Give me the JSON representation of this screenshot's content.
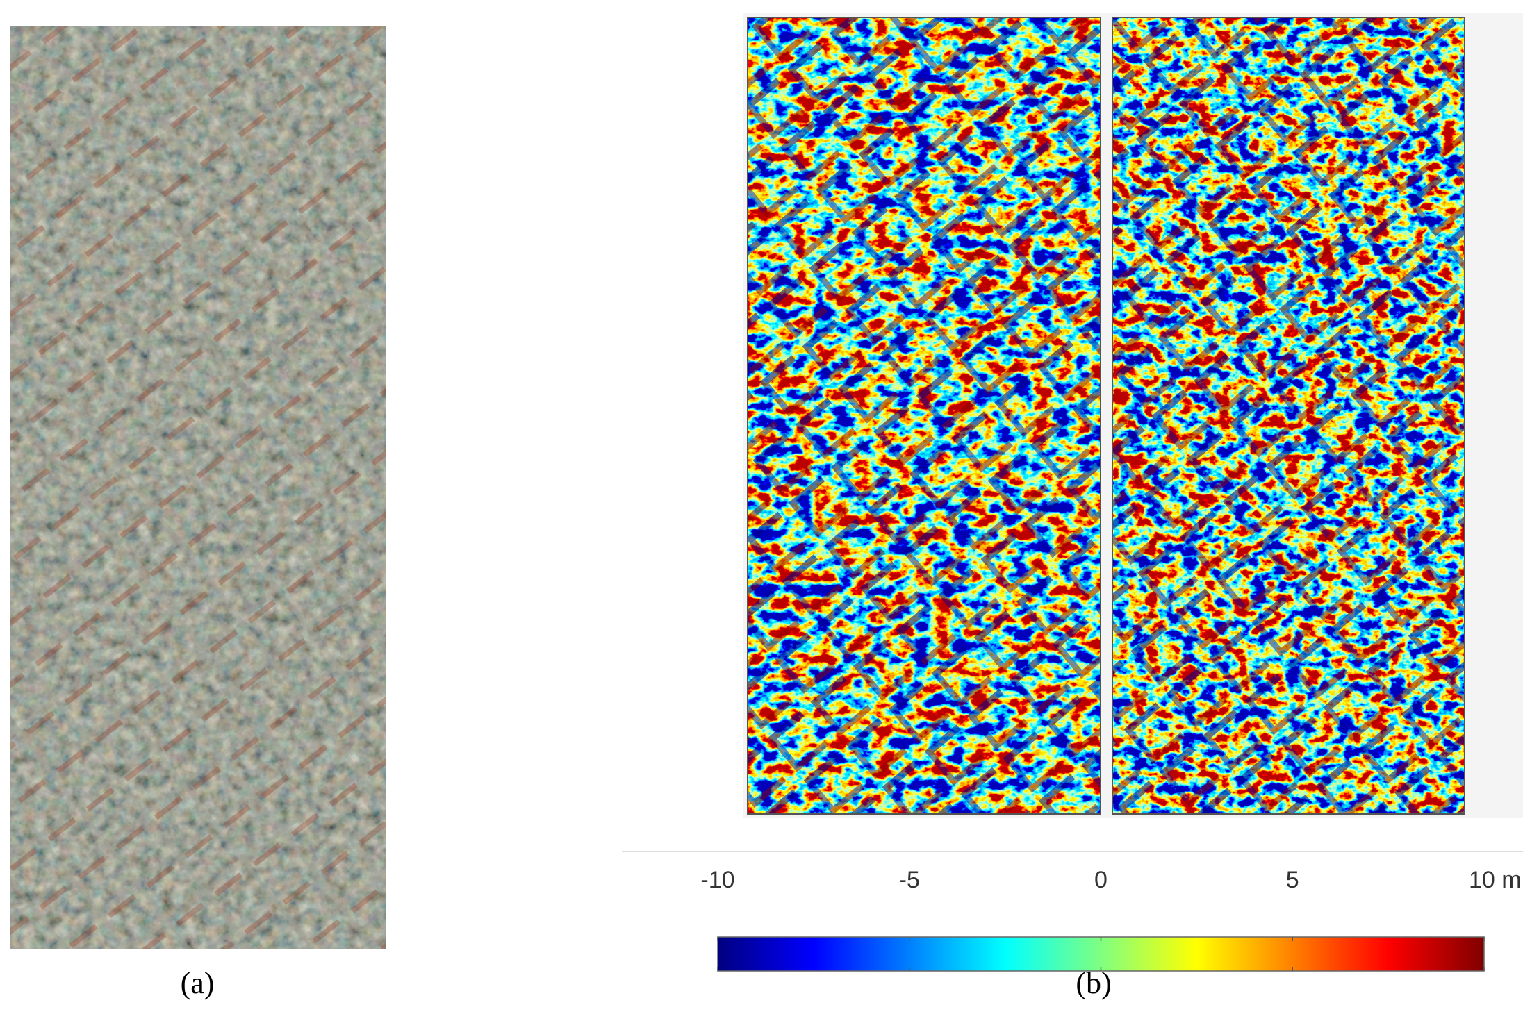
{
  "panels": [
    {
      "label": "(a)"
    },
    {
      "label": "(b)"
    }
  ],
  "colorbar": {
    "lim": [
      -10,
      10
    ],
    "ticks": [
      -10,
      -5,
      0,
      5,
      {
        "value": 10,
        "label": "10 m"
      }
    ],
    "colormap": "jet"
  }
}
